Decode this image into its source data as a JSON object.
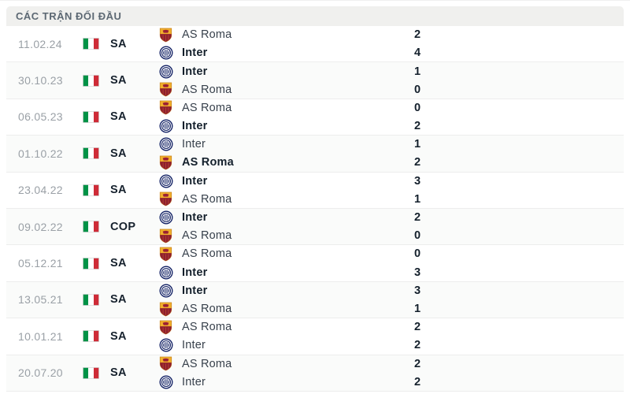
{
  "header": {
    "title": "CÁC TRẬN ĐỐI ĐẦU"
  },
  "flag_icon": "italy-flag-icon",
  "teams_meta": {
    "AS Roma": {
      "logo": "as-roma-logo-icon"
    },
    "Inter": {
      "logo": "inter-logo-icon"
    }
  },
  "colors": {
    "header_bg": "#f0f0ee",
    "header_text": "#5c6873",
    "date_text": "#9aa0a6",
    "dark_text": "#14202c",
    "row_alt_bg": "#fafbfa",
    "separator": "#ededed",
    "italy_green": "#009246",
    "italy_red": "#ce2b37",
    "roma_yellow": "#f2b02c",
    "roma_maroon": "#8e1f2f",
    "inter_navy": "#101f63"
  },
  "matches": [
    {
      "date": "11.02.24",
      "competition": "SA",
      "lines": [
        {
          "team": "AS Roma",
          "score": "2",
          "winner": false
        },
        {
          "team": "Inter",
          "score": "4",
          "winner": true
        }
      ]
    },
    {
      "date": "30.10.23",
      "competition": "SA",
      "lines": [
        {
          "team": "Inter",
          "score": "1",
          "winner": true
        },
        {
          "team": "AS Roma",
          "score": "0",
          "winner": false
        }
      ]
    },
    {
      "date": "06.05.23",
      "competition": "SA",
      "lines": [
        {
          "team": "AS Roma",
          "score": "0",
          "winner": false
        },
        {
          "team": "Inter",
          "score": "2",
          "winner": true
        }
      ]
    },
    {
      "date": "01.10.22",
      "competition": "SA",
      "lines": [
        {
          "team": "Inter",
          "score": "1",
          "winner": false
        },
        {
          "team": "AS Roma",
          "score": "2",
          "winner": true
        }
      ]
    },
    {
      "date": "23.04.22",
      "competition": "SA",
      "lines": [
        {
          "team": "Inter",
          "score": "3",
          "winner": true
        },
        {
          "team": "AS Roma",
          "score": "1",
          "winner": false
        }
      ]
    },
    {
      "date": "09.02.22",
      "competition": "COP",
      "lines": [
        {
          "team": "Inter",
          "score": "2",
          "winner": true
        },
        {
          "team": "AS Roma",
          "score": "0",
          "winner": false
        }
      ]
    },
    {
      "date": "05.12.21",
      "competition": "SA",
      "lines": [
        {
          "team": "AS Roma",
          "score": "0",
          "winner": false
        },
        {
          "team": "Inter",
          "score": "3",
          "winner": true
        }
      ]
    },
    {
      "date": "13.05.21",
      "competition": "SA",
      "lines": [
        {
          "team": "Inter",
          "score": "3",
          "winner": true
        },
        {
          "team": "AS Roma",
          "score": "1",
          "winner": false
        }
      ]
    },
    {
      "date": "10.01.21",
      "competition": "SA",
      "lines": [
        {
          "team": "AS Roma",
          "score": "2",
          "winner": false
        },
        {
          "team": "Inter",
          "score": "2",
          "winner": false
        }
      ]
    },
    {
      "date": "20.07.20",
      "competition": "SA",
      "lines": [
        {
          "team": "AS Roma",
          "score": "2",
          "winner": false
        },
        {
          "team": "Inter",
          "score": "2",
          "winner": false
        }
      ]
    }
  ]
}
